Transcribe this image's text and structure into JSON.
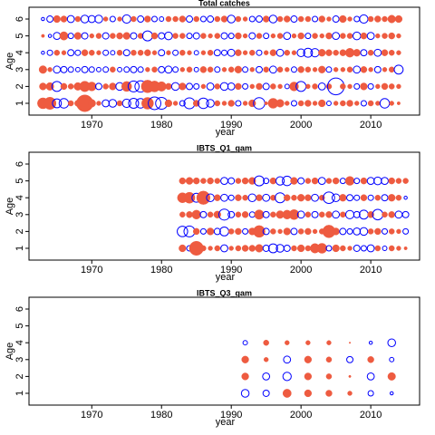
{
  "chart_data": [
    {
      "type": "bubble",
      "title": "Total catches",
      "xlabel": "year",
      "ylabel": "Age",
      "x": [
        1963,
        1964,
        1965,
        1966,
        1967,
        1968,
        1969,
        1970,
        1971,
        1972,
        1973,
        1974,
        1975,
        1976,
        1977,
        1978,
        1979,
        1980,
        1981,
        1982,
        1983,
        1984,
        1985,
        1986,
        1987,
        1988,
        1989,
        1990,
        1991,
        1992,
        1993,
        1994,
        1995,
        1996,
        1997,
        1998,
        1999,
        2000,
        2001,
        2002,
        2003,
        2004,
        2005,
        2006,
        2007,
        2008,
        2009,
        2010,
        2011,
        2012,
        2013,
        2014
      ],
      "ages": [
        1,
        2,
        3,
        4,
        5,
        6
      ],
      "values": [
        [
          1.2,
          1.5,
          -0.8,
          -0.9,
          0.3,
          0.4,
          2.8,
          0.6,
          0.2,
          -0.5,
          -0.6,
          0.3,
          -0.7,
          -1.0,
          -0.9,
          1.4,
          -1.6,
          -1.4,
          0.5,
          0.2,
          -0.3,
          -1.2,
          0.4,
          -1.1,
          -0.6,
          0.3,
          0.2,
          0.4,
          -0.3,
          0.2,
          0.5,
          -1.3,
          0.1,
          1.0,
          0.6,
          0.2,
          -0.3,
          0.3,
          0.4,
          0.2,
          0.5,
          -0.2,
          0.2,
          0.3,
          0.4,
          0.2,
          -0.3,
          0.3,
          0.2,
          -0.9,
          0.2,
          0.1
        ],
        [
          0.5,
          0.6,
          -1.0,
          0.4,
          0.3,
          0.6,
          1.1,
          0.8,
          -0.4,
          0.3,
          0.5,
          -0.6,
          1.0,
          -1.2,
          -1.3,
          1.6,
          1.2,
          0.9,
          0.4,
          -0.6,
          0.5,
          -0.4,
          -0.3,
          0.2,
          -0.5,
          0.3,
          -0.6,
          -0.5,
          0.4,
          -0.3,
          0.2,
          0.4,
          -0.4,
          0.3,
          0.2,
          -0.2,
          0.8,
          -1.0,
          0.2,
          0.3,
          -0.5,
          0.3,
          -2.8,
          0.3,
          0.2,
          -0.3,
          0.5,
          -0.3,
          0.2,
          0.4,
          0.3,
          0.2
        ],
        [
          0.6,
          0.2,
          -0.5,
          -0.4,
          -0.3,
          -0.2,
          -0.4,
          -0.3,
          -0.2,
          -0.3,
          0.3,
          -0.2,
          -0.3,
          -0.4,
          -0.3,
          0.2,
          0.3,
          -0.4,
          -0.5,
          -0.3,
          0.2,
          0.3,
          -0.2,
          0.4,
          0.3,
          -0.3,
          0.2,
          0.3,
          0.5,
          -0.3,
          0.2,
          -0.4,
          0.3,
          -0.5,
          0.3,
          0.2,
          -0.3,
          0.4,
          0.3,
          0.2,
          0.5,
          -0.3,
          0.2,
          0.2,
          0.3,
          -0.5,
          0.4,
          0.2,
          -0.4,
          0.2,
          0.3,
          -0.8
        ],
        [
          -0.1,
          -0.3,
          0.3,
          0.2,
          -0.4,
          -0.3,
          0.4,
          0.3,
          0.2,
          -0.3,
          -0.2,
          0.3,
          -0.4,
          0.3,
          0.3,
          0.4,
          0.2,
          -0.4,
          0.2,
          -0.3,
          0.3,
          0.2,
          -0.2,
          0.2,
          0.3,
          -0.4,
          -0.3,
          -0.5,
          0.4,
          0.2,
          0.3,
          -0.3,
          0.2,
          0.4,
          -0.5,
          0.3,
          0.2,
          -0.6,
          -0.8,
          -0.7,
          0.5,
          0.4,
          0.3,
          0.4,
          0.8,
          0.5,
          -0.4,
          0.3,
          -0.5,
          0.4,
          0.3,
          0.2
        ],
        [
          0.1,
          -0.1,
          -0.5,
          0.7,
          -0.3,
          0.5,
          -0.4,
          0.2,
          0.3,
          -0.4,
          0.3,
          0.4,
          0.5,
          -0.4,
          0.3,
          -1.0,
          0.4,
          -0.4,
          -0.6,
          0.3,
          0.3,
          -0.3,
          -0.4,
          0.3,
          0.2,
          0.3,
          -0.4,
          -0.3,
          0.4,
          0.2,
          -0.4,
          0.3,
          -0.3,
          0.2,
          0.3,
          -0.5,
          0.2,
          0.4,
          -0.3,
          0.3,
          0.2,
          0.4,
          -0.5,
          0.3,
          0.3,
          -0.6,
          0.4,
          -0.5,
          0.2,
          0.3,
          0.4,
          0.2
        ],
        [
          -0.1,
          -0.4,
          0.5,
          0.4,
          -0.5,
          0.3,
          -0.6,
          -0.5,
          -0.6,
          0.2,
          -0.3,
          0.2,
          -0.7,
          0.3,
          -0.4,
          0.4,
          -0.3,
          -0.2,
          0.3,
          0.3,
          0.4,
          -0.4,
          0.3,
          -0.3,
          -0.4,
          0.3,
          0.4,
          -0.6,
          0.3,
          0.2,
          -0.3,
          -0.4,
          0.4,
          -0.6,
          0.3,
          0.4,
          -0.4,
          0.3,
          0.3,
          -0.3,
          0.4,
          0.2,
          -0.4,
          0.5,
          0.2,
          -0.3,
          -0.7,
          0.3,
          0.4,
          0.3,
          0.6,
          0.5
        ]
      ],
      "xlim": [
        1961,
        2017
      ],
      "xticks": [
        1970,
        1980,
        1990,
        2000,
        2010
      ],
      "ylim": [
        0.3,
        6.7
      ],
      "yticks": [
        1,
        2,
        3,
        4,
        5,
        6
      ],
      "positive_color": "#ee5b40",
      "negative_color": "#0000ff"
    },
    {
      "type": "bubble",
      "title": "IBTS_Q1_gam",
      "xlabel": "year",
      "ylabel": "Age",
      "x": [
        1983,
        1984,
        1985,
        1986,
        1987,
        1988,
        1989,
        1990,
        1991,
        1992,
        1993,
        1994,
        1995,
        1996,
        1997,
        1998,
        1999,
        2000,
        2001,
        2002,
        2003,
        2004,
        2005,
        2006,
        2007,
        2008,
        2009,
        2010,
        2011,
        2012,
        2013,
        2014,
        2015
      ],
      "ages": [
        1,
        2,
        3,
        4,
        5
      ],
      "values": [
        [
          0.5,
          -0.3,
          2.0,
          0.3,
          0.2,
          0.3,
          -0.5,
          0.2,
          0.3,
          0.4,
          0.4,
          0.6,
          -0.4,
          -0.8,
          -0.6,
          -0.4,
          0.3,
          0.5,
          0.3,
          0.9,
          1.0,
          -0.3,
          0.5,
          0.3,
          0.2,
          -0.4,
          -0.3,
          -0.5,
          0.3,
          -0.2,
          0.3,
          0.2,
          0.1
        ],
        [
          -1.1,
          -1.2,
          0.4,
          -0.3,
          0.5,
          -0.4,
          -0.8,
          0.3,
          0.4,
          -0.3,
          0.5,
          1.4,
          -0.4,
          0.3,
          0.2,
          0.5,
          -0.4,
          0.3,
          0.4,
          0.2,
          0.3,
          1.6,
          0.5,
          -0.4,
          -0.3,
          -0.5,
          -0.6,
          0.3,
          0.4,
          -0.3,
          0.3,
          0.2,
          -0.3
        ],
        [
          0.3,
          0.4,
          0.8,
          -0.4,
          0.3,
          0.5,
          -1.2,
          -0.4,
          0.3,
          0.4,
          -0.3,
          0.9,
          -0.4,
          0.3,
          0.6,
          0.8,
          1.0,
          -0.5,
          0.3,
          -0.4,
          0.3,
          0.4,
          -0.5,
          0.3,
          -0.7,
          -0.4,
          -0.8,
          0.4,
          -1.1,
          0.3,
          0.4,
          -0.5,
          -0.4
        ],
        [
          1.0,
          1.2,
          -0.8,
          1.8,
          -0.6,
          0.4,
          -0.5,
          -0.3,
          0.4,
          0.3,
          -0.6,
          0.4,
          -0.5,
          0.3,
          -1.0,
          0.4,
          0.3,
          0.5,
          0.4,
          -0.5,
          0.3,
          -1.3,
          -0.6,
          0.5,
          -0.4,
          -0.3,
          0.4,
          -0.3,
          0.3,
          -0.4,
          0.5,
          0.3,
          -0.1
        ],
        [
          0.4,
          0.5,
          0.4,
          0.3,
          0.4,
          0.3,
          -0.5,
          -0.4,
          0.3,
          0.4,
          0.5,
          -1.0,
          -0.3,
          0.4,
          -0.7,
          -0.9,
          0.5,
          -0.4,
          0.3,
          0.4,
          -0.5,
          0.3,
          0.4,
          -0.3,
          0.8,
          -0.3,
          0.4,
          -0.5,
          -0.6,
          -0.5,
          0.4,
          0.3,
          0.3
        ]
      ],
      "xlim": [
        1961,
        2017
      ],
      "xticks": [
        1970,
        1980,
        1990,
        2000,
        2010
      ],
      "ylim": [
        0.3,
        6.7
      ],
      "yticks": [
        1,
        2,
        3,
        4,
        5,
        6
      ],
      "positive_color": "#ee5b40",
      "negative_color": "#0000ff"
    },
    {
      "type": "bubble",
      "title": "IBTS_Q3_gam",
      "xlabel": "year",
      "ylabel": "Age",
      "x": [
        1992,
        1995,
        1998,
        2001,
        2004,
        2007,
        2010,
        2013
      ],
      "ages": [
        1,
        2,
        3,
        4
      ],
      "values": [
        [
          -0.6,
          -0.4,
          0.7,
          0.5,
          0.4,
          0.2,
          -0.3,
          -0.1
        ],
        [
          0.5,
          -0.5,
          -0.7,
          0.5,
          0.3,
          0.05,
          -0.5,
          0.6
        ],
        [
          0.5,
          0.2,
          -0.5,
          0.5,
          0.3,
          -0.4,
          0.4,
          -0.2
        ],
        [
          -0.2,
          0.3,
          0.2,
          0.2,
          0.2,
          0.02,
          -0.1,
          -0.6
        ]
      ],
      "xlim": [
        1961,
        2017
      ],
      "xticks": [
        1970,
        1980,
        1990,
        2000,
        2010
      ],
      "ylim": [
        0.3,
        6.7
      ],
      "yticks": [
        1,
        2,
        3,
        4,
        5,
        6
      ],
      "positive_color": "#ee5b40",
      "negative_color": "#0000ff"
    }
  ]
}
